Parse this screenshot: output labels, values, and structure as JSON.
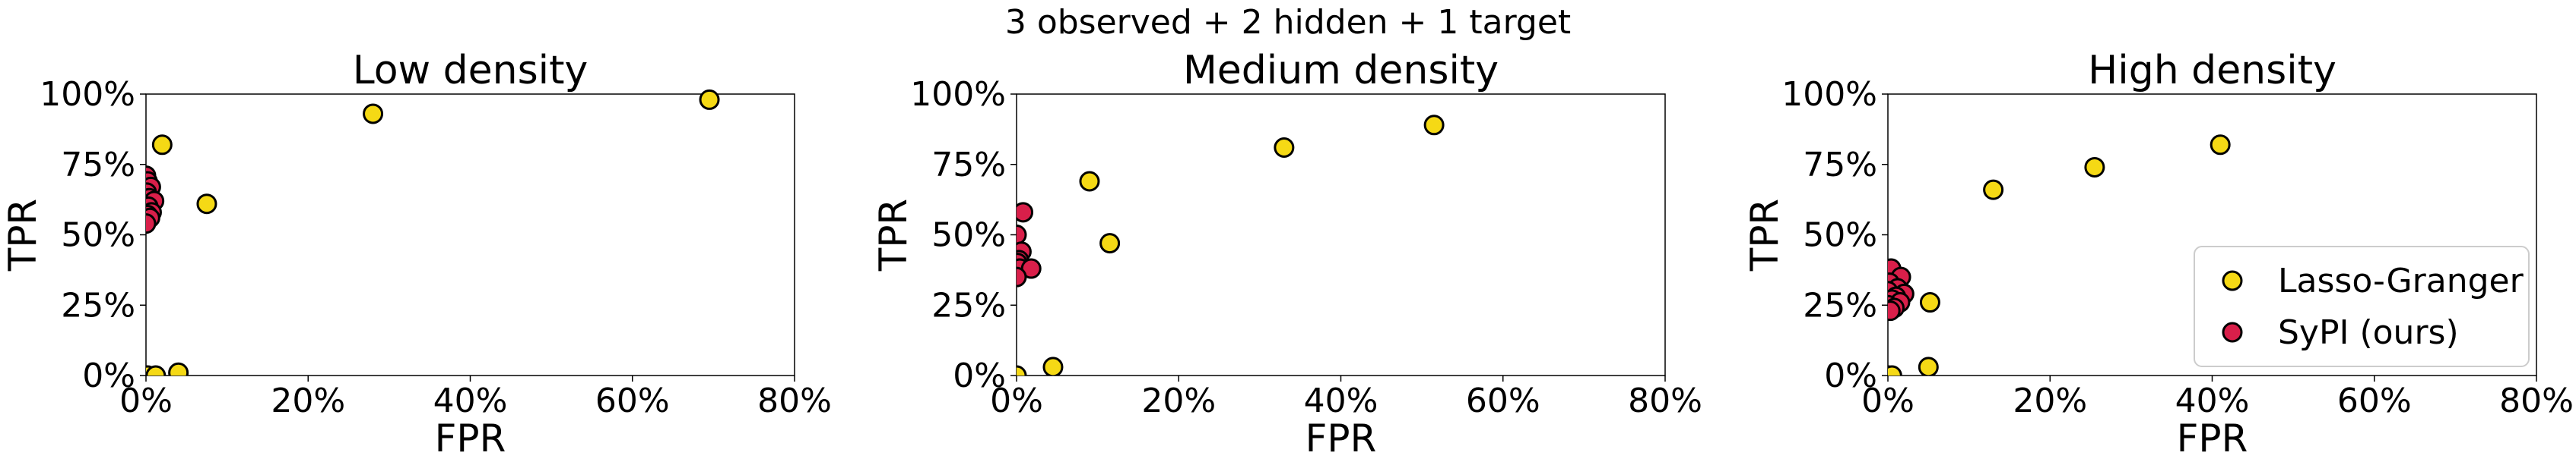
{
  "suptitle": "3 observed + 2 hidden + 1 target",
  "colors": {
    "lasso": "#f5d915",
    "sypi": "#d91f4a",
    "edge": "#000000"
  },
  "chart_data": [
    {
      "type": "scatter",
      "title": "Low density",
      "xlabel": "FPR",
      "ylabel": "TPR",
      "xlim": [
        0,
        0.8
      ],
      "ylim": [
        0,
        1
      ],
      "xticks": [
        "0%",
        "20%",
        "40%",
        "60%",
        "80%"
      ],
      "yticks": [
        "0%",
        "25%",
        "50%",
        "75%",
        "100%"
      ],
      "grid": false,
      "series": [
        {
          "name": "Lasso-Granger",
          "color": "lasso",
          "points": [
            [
              0.002,
              0.0
            ],
            [
              0.012,
              0.0
            ],
            [
              0.04,
              0.01
            ],
            [
              0.075,
              0.61
            ],
            [
              0.02,
              0.82
            ],
            [
              0.28,
              0.93
            ],
            [
              0.695,
              0.98
            ]
          ]
        },
        {
          "name": "SyPI (ours)",
          "color": "sypi",
          "points": [
            [
              0.0,
              0.71
            ],
            [
              0.002,
              0.69
            ],
            [
              0.006,
              0.67
            ],
            [
              0.001,
              0.65
            ],
            [
              0.004,
              0.63
            ],
            [
              0.01,
              0.62
            ],
            [
              0.003,
              0.6
            ],
            [
              0.007,
              0.58
            ],
            [
              0.002,
              0.57
            ],
            [
              0.005,
              0.56
            ],
            [
              0.0,
              0.54
            ]
          ]
        }
      ]
    },
    {
      "type": "scatter",
      "title": "Medium density",
      "xlabel": "FPR",
      "ylabel": "TPR",
      "xlim": [
        0,
        0.8
      ],
      "ylim": [
        0,
        1
      ],
      "xticks": [
        "0%",
        "20%",
        "40%",
        "60%",
        "80%"
      ],
      "yticks": [
        "0%",
        "25%",
        "50%",
        "75%",
        "100%"
      ],
      "grid": false,
      "series": [
        {
          "name": "Lasso-Granger",
          "color": "lasso",
          "points": [
            [
              0.0,
              0.0
            ],
            [
              0.045,
              0.03
            ],
            [
              0.09,
              0.69
            ],
            [
              0.115,
              0.47
            ],
            [
              0.33,
              0.81
            ],
            [
              0.515,
              0.89
            ]
          ]
        },
        {
          "name": "SyPI (ours)",
          "color": "sypi",
          "points": [
            [
              0.008,
              0.58
            ],
            [
              0.0,
              0.5
            ],
            [
              0.006,
              0.44
            ],
            [
              0.003,
              0.41
            ],
            [
              0.001,
              0.4
            ],
            [
              0.004,
              0.38
            ],
            [
              0.018,
              0.38
            ],
            [
              0.0,
              0.35
            ]
          ]
        }
      ]
    },
    {
      "type": "scatter",
      "title": "High density",
      "xlabel": "FPR",
      "ylabel": "TPR",
      "xlim": [
        0,
        0.8
      ],
      "ylim": [
        0,
        1
      ],
      "xticks": [
        "0%",
        "20%",
        "40%",
        "60%",
        "80%"
      ],
      "yticks": [
        "0%",
        "25%",
        "50%",
        "75%",
        "100%"
      ],
      "grid": false,
      "legend": {
        "position": "lower-right",
        "entries": [
          "Lasso-Granger",
          "SyPI (ours)"
        ]
      },
      "series": [
        {
          "name": "Lasso-Granger",
          "color": "lasso",
          "points": [
            [
              0.0,
              0.0
            ],
            [
              0.005,
              0.0
            ],
            [
              0.05,
              0.03
            ],
            [
              0.052,
              0.26
            ],
            [
              0.13,
              0.66
            ],
            [
              0.255,
              0.74
            ],
            [
              0.41,
              0.82
            ]
          ]
        },
        {
          "name": "SyPI (ours)",
          "color": "sypi",
          "points": [
            [
              0.004,
              0.38
            ],
            [
              0.016,
              0.35
            ],
            [
              0.002,
              0.33
            ],
            [
              0.012,
              0.31
            ],
            [
              0.0,
              0.3
            ],
            [
              0.02,
              0.29
            ],
            [
              0.01,
              0.28
            ],
            [
              0.005,
              0.27
            ],
            [
              0.015,
              0.26
            ],
            [
              0.0,
              0.25
            ],
            [
              0.008,
              0.24
            ],
            [
              0.003,
              0.23
            ]
          ]
        }
      ]
    }
  ]
}
